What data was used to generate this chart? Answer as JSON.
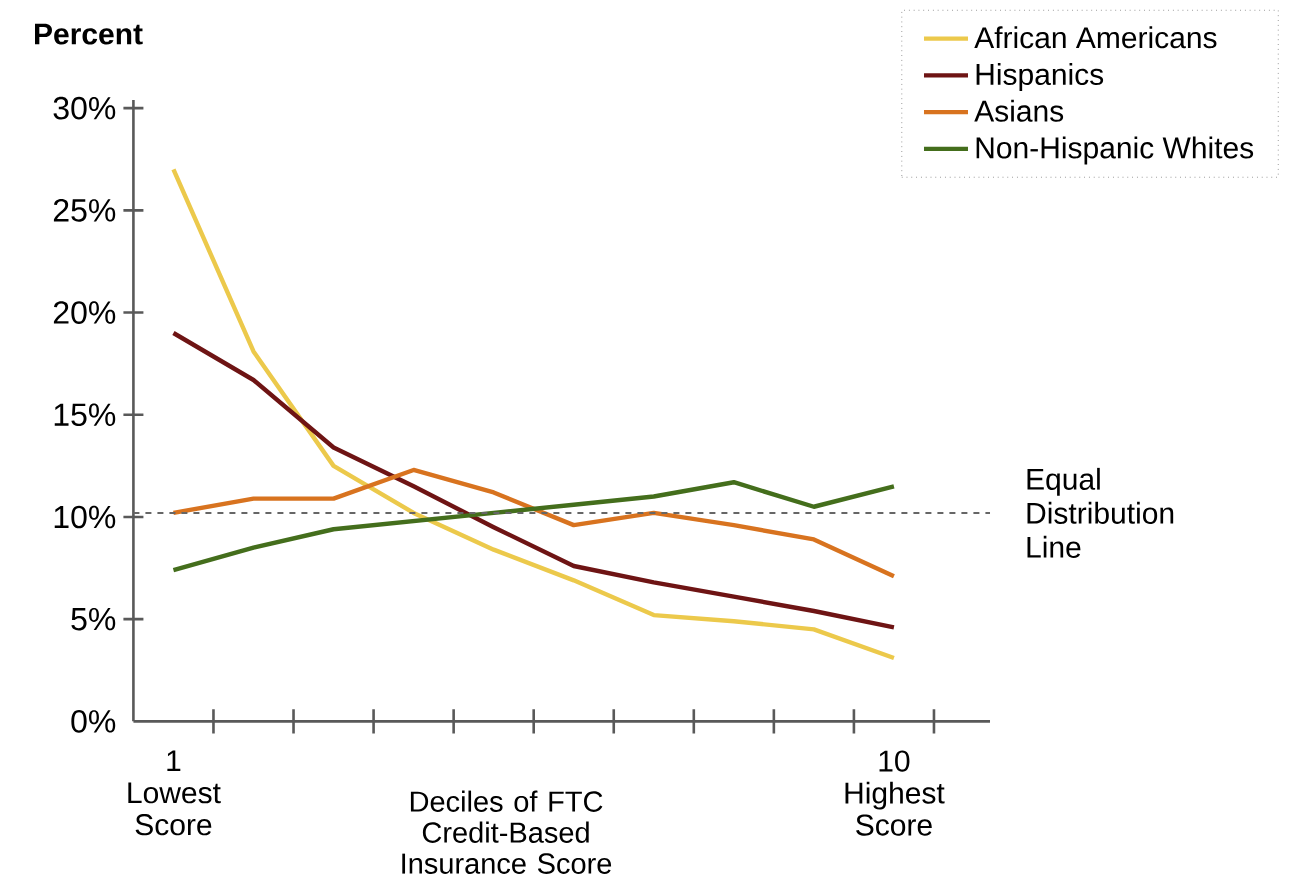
{
  "chart_data": {
    "type": "line",
    "ylabel": "Percent",
    "xlabel": "Deciles of FTC Credit-Based Insurance Score",
    "x": [
      1,
      2,
      3,
      4,
      5,
      6,
      7,
      8,
      9,
      10
    ],
    "series": [
      {
        "name": "African Americans",
        "color": "#ecc94b",
        "values": [
          27.0,
          18.1,
          12.5,
          10.2,
          8.4,
          6.9,
          5.2,
          4.9,
          4.5,
          3.1
        ]
      },
      {
        "name": "Hispanics",
        "color": "#6e1414",
        "values": [
          19.0,
          16.7,
          13.4,
          11.5,
          9.5,
          7.6,
          6.8,
          6.1,
          5.4,
          4.6
        ]
      },
      {
        "name": "Asians",
        "color": "#d8731f",
        "values": [
          10.2,
          10.9,
          10.9,
          12.3,
          11.2,
          9.6,
          10.2,
          9.6,
          8.9,
          7.1
        ]
      },
      {
        "name": "Non-Hispanic Whites",
        "color": "#446e1c",
        "values": [
          7.4,
          8.5,
          9.4,
          9.8,
          10.2,
          10.6,
          11.0,
          11.7,
          10.5,
          11.5
        ]
      }
    ],
    "xlim": [
      0.5,
      11.2
    ],
    "ylim": [
      0,
      30.4
    ],
    "xticks": [
      {
        "value": 1,
        "label": "1 Lowest Score"
      },
      {
        "value": 1.5,
        "label": null
      },
      {
        "value": 2.5,
        "label": null
      },
      {
        "value": 3.5,
        "label": null
      },
      {
        "value": 4.5,
        "label": null
      },
      {
        "value": 5.5,
        "label": null
      },
      {
        "value": 6.5,
        "label": null
      },
      {
        "value": 7.5,
        "label": null
      },
      {
        "value": 8.5,
        "label": null
      },
      {
        "value": 9.5,
        "label": null
      },
      {
        "value": 10,
        "label": "10 Highest Score"
      },
      {
        "value": 10.5,
        "label": null
      }
    ],
    "yticks": [
      {
        "value": 0,
        "label": "0%"
      },
      {
        "value": 5,
        "label": "5%"
      },
      {
        "value": 10,
        "label": "10%"
      },
      {
        "value": 15,
        "label": "15%"
      },
      {
        "value": 20,
        "label": "20%"
      },
      {
        "value": 25,
        "label": "25%"
      },
      {
        "value": 30,
        "label": "30%"
      }
    ],
    "ref_lines": [
      {
        "axis": "y",
        "value": 10.2,
        "label": "Equal Distribution Line",
        "color": "#666666",
        "line_style": "dashed"
      }
    ],
    "legend": "top right"
  }
}
